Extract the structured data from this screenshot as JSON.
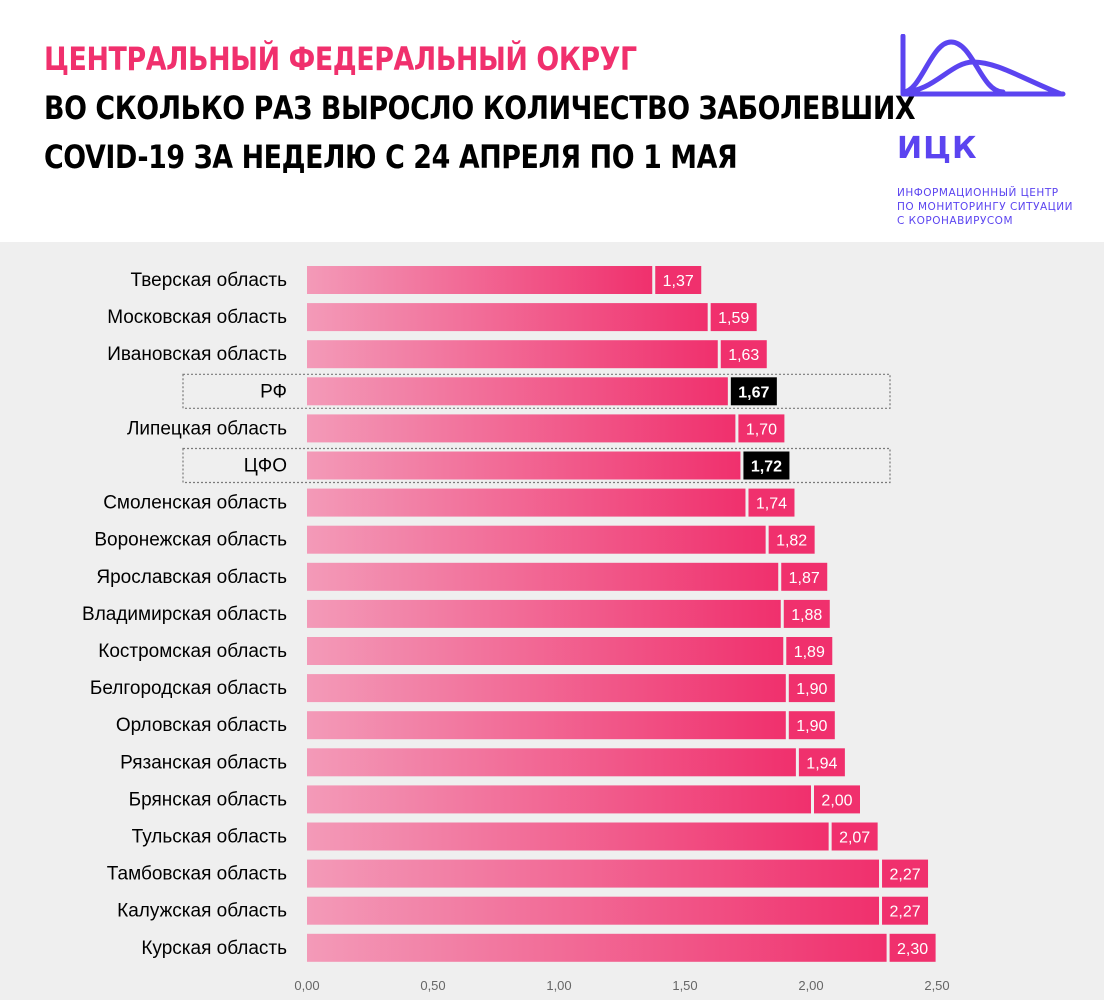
{
  "header": {
    "supertitle": "ЦЕНТРАЛЬНЫЙ ФЕДЕРАЛЬНЫЙ ОКРУГ",
    "title_line1": "ВО СКОЛЬКО РАЗ ВЫРОСЛО КОЛИЧЕСТВО ЗАБОЛЕВШИХ",
    "title_line2": "COVID-19 ЗА НЕДЕЛЮ С 24 АПРЕЛЯ ПО 1 МАЯ"
  },
  "logo": {
    "name": "ИЦК",
    "subtitle": [
      "ИНФОРМАЦИОННЫЙ ЦЕНТР",
      "ПО МОНИТОРИНГУ СИТУАЦИИ",
      "С КОРОНАВИРУСОМ"
    ],
    "color": "#5b44f0"
  },
  "colors": {
    "accent": "#f0306d",
    "bar_start": "#f39ab8",
    "bar_end": "#f0306d",
    "highlight_label_bg": "#000000",
    "background": "#efefef"
  },
  "chart_data": {
    "type": "bar",
    "orientation": "horizontal",
    "categories": [
      "Тверская область",
      "Московская область",
      "Ивановская область",
      "РФ",
      "Липецкая область",
      "ЦФО",
      "Смоленская область",
      "Воронежская область",
      "Ярославская область",
      "Владимирская область",
      "Костромская область",
      "Белгородская область",
      "Орловская область",
      "Рязанская область",
      "Брянская область",
      "Тульская область",
      "Тамбовская область",
      "Калужская область",
      "Курская область"
    ],
    "values": [
      1.37,
      1.59,
      1.63,
      1.67,
      1.7,
      1.72,
      1.74,
      1.82,
      1.87,
      1.88,
      1.89,
      1.9,
      1.9,
      1.94,
      2.0,
      2.07,
      2.27,
      2.27,
      2.3
    ],
    "value_labels": [
      "1,37",
      "1,59",
      "1,63",
      "1,67",
      "1,70",
      "1,72",
      "1,74",
      "1,82",
      "1,87",
      "1,88",
      "1,89",
      "1,90",
      "1,90",
      "1,94",
      "2,00",
      "2,07",
      "2,27",
      "2,27",
      "2,30"
    ],
    "highlighted": [
      "РФ",
      "ЦФО"
    ],
    "xlim": [
      0,
      2.5
    ],
    "xticks": [
      0,
      0.5,
      1.0,
      1.5,
      2.0,
      2.5
    ],
    "xtick_labels": [
      "0,00",
      "0,50",
      "1,00",
      "1,50",
      "2,00",
      "2,50"
    ],
    "grid": false,
    "legend": "none"
  }
}
